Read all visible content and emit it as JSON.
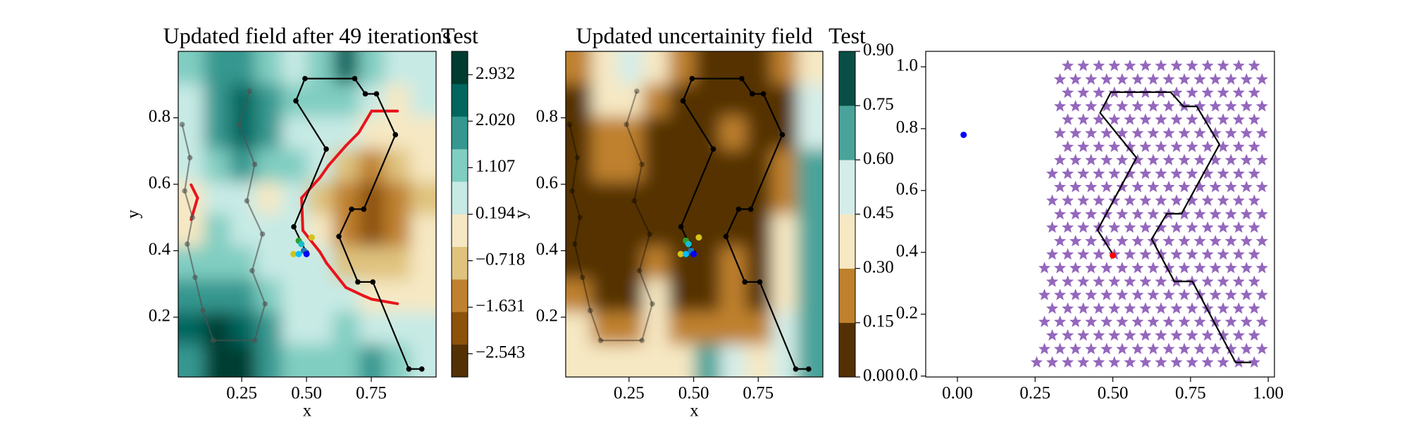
{
  "chart_data": [
    {
      "type": "contour",
      "title": "Updated field after 49 iterations",
      "colorbar_label": "Test",
      "xlabel": "x",
      "ylabel": "y",
      "xlim": [
        0.005,
        1.0
      ],
      "ylim": [
        0.02,
        1.0
      ],
      "xticks": [
        0.25,
        {
          "value": 0.5,
          "label": "0.50"
        },
        0.75
      ],
      "yticks": [
        0.2,
        0.4,
        0.6,
        0.8
      ],
      "levels": [
        -3.0,
        -2.361,
        -1.722,
        -1.083,
        -0.444,
        0.195,
        0.834,
        1.473,
        2.112,
        2.751,
        3.39
      ],
      "colors": [
        "#543005",
        "#8c510a",
        "#bf812d",
        "#dfc27d",
        "#f6e8c3",
        "#c7eae5",
        "#80cdc1",
        "#35978f",
        "#01665e",
        "#003c30"
      ],
      "cticks": [
        {
          "value": -2.543,
          "label": "−2.543"
        },
        {
          "value": -1.631,
          "label": "−1.631"
        },
        {
          "value": -0.718,
          "label": "−0.718"
        },
        0.194,
        1.107,
        {
          "value": 2.02,
          "label": "2.020"
        },
        2.932
      ],
      "z": [
        [
          0.9,
          1.5,
          1.8,
          1.2,
          0.8,
          1.4,
          2.3,
          1.3,
          0.2,
          0.3
        ],
        [
          0.8,
          2.0,
          2.6,
          1.6,
          0.9,
          1.0,
          1.2,
          0.2,
          0.1,
          0.2
        ],
        [
          0.6,
          1.9,
          2.5,
          1.5,
          0.8,
          0.7,
          0.4,
          -0.4,
          -0.2,
          0.0
        ],
        [
          0.3,
          1.2,
          1.6,
          1.2,
          0.9,
          0.3,
          -0.6,
          -1.2,
          -0.8,
          -0.3
        ],
        [
          -0.2,
          0.6,
          0.2,
          0.1,
          0.2,
          -0.5,
          -1.6,
          -2.3,
          -1.4,
          -0.5
        ],
        [
          0.1,
          0.9,
          0.6,
          0.5,
          0.2,
          -0.4,
          -1.4,
          -2.0,
          -1.3,
          -0.4
        ],
        [
          0.9,
          1.3,
          1.1,
          0.8,
          0.6,
          0.2,
          -0.6,
          -0.9,
          -0.5,
          -0.1
        ],
        [
          1.5,
          2.0,
          1.8,
          1.2,
          0.7,
          0.5,
          0.2,
          -0.1,
          -0.2,
          0.0
        ],
        [
          2.2,
          3.0,
          2.4,
          1.5,
          0.8,
          0.7,
          0.9,
          0.8,
          0.6,
          0.5
        ],
        [
          2.0,
          3.2,
          2.8,
          1.7,
          1.0,
          0.9,
          1.2,
          1.5,
          1.3,
          0.8
        ]
      ],
      "threshold": 0,
      "threshold_color": "#e8141c",
      "past_path": {
        "x": [
          0.02,
          0.05,
          0.03,
          0.06,
          0.04,
          0.07,
          0.1,
          0.14,
          0.3,
          0.34,
          0.29,
          0.33,
          0.27,
          0.3,
          0.24,
          0.28
        ],
        "y": [
          0.78,
          0.68,
          0.58,
          0.5,
          0.42,
          0.32,
          0.22,
          0.13,
          0.13,
          0.24,
          0.34,
          0.45,
          0.55,
          0.66,
          0.78,
          0.88
        ],
        "color": "#505050",
        "opacity": 0.6
      },
      "path": {
        "x": [
          0.945,
          0.895,
          0.756,
          0.698,
          0.625,
          0.674,
          0.721,
          0.843,
          0.77,
          0.727,
          0.686,
          0.494,
          0.459,
          0.576,
          0.451,
          0.5
        ],
        "y": [
          0.044,
          0.044,
          0.306,
          0.306,
          0.443,
          0.525,
          0.525,
          0.749,
          0.872,
          0.872,
          0.918,
          0.918,
          0.851,
          0.706,
          0.472,
          0.394
        ],
        "color": "#000000"
      },
      "markers": true,
      "points": {
        "x": [
          0.47,
          0.48,
          0.49,
          0.5,
          0.45,
          0.52,
          0.47
        ],
        "y": [
          0.43,
          0.42,
          0.4,
          0.39,
          0.39,
          0.44,
          0.39
        ],
        "colors": [
          "#2ca02c",
          "#17becf",
          "#1f77b4",
          "#0000ff",
          "#d4c21a",
          "#d4c21a",
          "#00bfff"
        ]
      }
    },
    {
      "type": "contour",
      "title": "Updated uncertainity field",
      "colorbar_label": "Test",
      "xlabel": "x",
      "ylabel": "y",
      "xlim": [
        0.005,
        1.0
      ],
      "ylim": [
        0.02,
        1.0
      ],
      "xticks": [
        0.25,
        {
          "value": 0.5,
          "label": "0.50"
        },
        0.75
      ],
      "yticks": [
        0.2,
        0.4,
        0.6,
        0.8
      ],
      "levels": [
        0,
        0.15,
        0.3,
        0.45,
        0.6,
        0.75,
        0.9
      ],
      "colors": [
        "#543005",
        "#bf812d",
        "#f6e8c3",
        "#d5ede8",
        "#4aa39a",
        "#0a4f45"
      ],
      "cticks": [
        {
          "value": 0,
          "label": "0.00"
        },
        0.15,
        {
          "value": 0.3,
          "label": "0.30"
        },
        0.45,
        {
          "value": 0.6,
          "label": "0.60"
        },
        0.75,
        {
          "value": 0.9,
          "label": "0.90"
        }
      ],
      "z": [
        [
          0.2,
          0.4,
          0.45,
          0.35,
          0.2,
          0.05,
          0.05,
          0.05,
          0.2,
          0.4
        ],
        [
          0.1,
          0.3,
          0.35,
          0.2,
          0.1,
          0.05,
          0.05,
          0.1,
          0.05,
          0.45
        ],
        [
          0.05,
          0.15,
          0.25,
          0.1,
          0.05,
          0.05,
          0.2,
          0.05,
          0.1,
          0.55
        ],
        [
          0.05,
          0.15,
          0.2,
          0.05,
          0.05,
          0.05,
          0.1,
          0.05,
          0.2,
          0.6
        ],
        [
          0.05,
          0.1,
          0.05,
          0.05,
          0.05,
          0.05,
          0.05,
          0.05,
          0.25,
          0.6
        ],
        [
          0.05,
          0.05,
          0.05,
          0.05,
          0.05,
          0.05,
          0.1,
          0.05,
          0.3,
          0.65
        ],
        [
          0.1,
          0.05,
          0.05,
          0.15,
          0.05,
          0.05,
          0.15,
          0.05,
          0.35,
          0.65
        ],
        [
          0.2,
          0.1,
          0.1,
          0.3,
          0.1,
          0.05,
          0.2,
          0.1,
          0.4,
          0.7
        ],
        [
          0.3,
          0.25,
          0.2,
          0.35,
          0.2,
          0.25,
          0.2,
          0.2,
          0.45,
          0.65
        ],
        [
          0.4,
          0.35,
          0.3,
          0.35,
          0.4,
          0.7,
          0.55,
          0.35,
          0.55,
          0.7
        ]
      ],
      "past_path": {
        "x": [
          0.02,
          0.05,
          0.03,
          0.06,
          0.04,
          0.07,
          0.1,
          0.14,
          0.3,
          0.34,
          0.29,
          0.33,
          0.27,
          0.3,
          0.24,
          0.28
        ],
        "y": [
          0.78,
          0.68,
          0.58,
          0.5,
          0.42,
          0.32,
          0.22,
          0.13,
          0.13,
          0.24,
          0.34,
          0.45,
          0.55,
          0.66,
          0.78,
          0.88
        ],
        "color": "#000000",
        "opacity": 0.35
      },
      "path": {
        "x": [
          0.945,
          0.895,
          0.756,
          0.698,
          0.625,
          0.674,
          0.721,
          0.843,
          0.77,
          0.727,
          0.686,
          0.494,
          0.459,
          0.576,
          0.451,
          0.5
        ],
        "y": [
          0.044,
          0.044,
          0.306,
          0.306,
          0.443,
          0.525,
          0.525,
          0.749,
          0.872,
          0.872,
          0.918,
          0.918,
          0.851,
          0.706,
          0.472,
          0.394
        ],
        "color": "#000000"
      },
      "markers": true,
      "points": {
        "x": [
          0.47,
          0.48,
          0.49,
          0.5,
          0.45,
          0.52,
          0.47
        ],
        "y": [
          0.43,
          0.42,
          0.4,
          0.39,
          0.39,
          0.44,
          0.39
        ],
        "colors": [
          "#2ca02c",
          "#17becf",
          "#1f77b4",
          "#0000ff",
          "#d4c21a",
          "#d4c21a",
          "#00bfff"
        ]
      }
    },
    {
      "type": "scatter",
      "xlim": [
        -0.102,
        1.02
      ],
      "ylim": [
        -0.003,
        1.05
      ],
      "xticks": [
        {
          "value": 0,
          "label": "0.00"
        },
        0.25,
        {
          "value": 0.5,
          "label": "0.50"
        },
        0.75,
        {
          "value": 1,
          "label": "1.00"
        }
      ],
      "yticks": [
        {
          "value": 0,
          "label": "0.0"
        },
        0.2,
        0.4,
        0.6,
        0.8,
        {
          "value": 1,
          "label": "1.0"
        }
      ],
      "star_color": "#9467bd",
      "star_rows": [
        {
          "y": 1.003,
          "x": [
            0.355,
            0.405,
            0.455,
            0.505,
            0.555,
            0.605,
            0.655,
            0.705,
            0.755,
            0.805,
            0.855,
            0.905,
            0.955
          ]
        },
        {
          "y": 0.959,
          "x": [
            0.33,
            0.38,
            0.43,
            0.48,
            0.53,
            0.58,
            0.63,
            0.68,
            0.73,
            0.78,
            0.83,
            0.88,
            0.93,
            0.98
          ]
        },
        {
          "y": 0.916,
          "x": [
            0.355,
            0.405,
            0.455,
            0.505,
            0.555,
            0.605,
            0.655,
            0.705,
            0.755,
            0.805,
            0.855,
            0.905,
            0.955
          ]
        },
        {
          "y": 0.872,
          "x": [
            0.33,
            0.38,
            0.43,
            0.48,
            0.53,
            0.58,
            0.63,
            0.68,
            0.73,
            0.78,
            0.83,
            0.88,
            0.93,
            0.98
          ]
        },
        {
          "y": 0.829,
          "x": [
            0.355,
            0.405,
            0.455,
            0.505,
            0.555,
            0.605,
            0.655,
            0.705,
            0.755,
            0.805,
            0.855,
            0.905,
            0.955
          ]
        },
        {
          "y": 0.785,
          "x": [
            0.33,
            0.38,
            0.43,
            0.48,
            0.53,
            0.58,
            0.63,
            0.68,
            0.73,
            0.78,
            0.83,
            0.88,
            0.93,
            0.98
          ]
        },
        {
          "y": 0.741,
          "x": [
            0.355,
            0.405,
            0.455,
            0.505,
            0.555,
            0.605,
            0.655,
            0.705,
            0.755,
            0.805,
            0.855,
            0.905,
            0.955
          ]
        },
        {
          "y": 0.698,
          "x": [
            0.33,
            0.38,
            0.43,
            0.48,
            0.53,
            0.58,
            0.63,
            0.68,
            0.73,
            0.78,
            0.83,
            0.88,
            0.93,
            0.98
          ]
        },
        {
          "y": 0.654,
          "x": [
            0.305,
            0.355,
            0.405,
            0.455,
            0.505,
            0.555,
            0.605,
            0.655,
            0.705,
            0.755,
            0.805,
            0.855,
            0.905,
            0.955
          ]
        },
        {
          "y": 0.611,
          "x": [
            0.33,
            0.38,
            0.43,
            0.48,
            0.53,
            0.58,
            0.63,
            0.68,
            0.73,
            0.78,
            0.83,
            0.88,
            0.93,
            0.98
          ]
        },
        {
          "y": 0.567,
          "x": [
            0.305,
            0.355,
            0.405,
            0.455,
            0.505,
            0.555,
            0.605,
            0.655,
            0.705,
            0.755,
            0.805,
            0.855,
            0.905,
            0.955
          ]
        },
        {
          "y": 0.523,
          "x": [
            0.33,
            0.38,
            0.43,
            0.48,
            0.53,
            0.58,
            0.63,
            0.68,
            0.73,
            0.78,
            0.83,
            0.88,
            0.93,
            0.98
          ]
        },
        {
          "y": 0.48,
          "x": [
            0.305,
            0.355,
            0.405,
            0.455,
            0.505,
            0.555,
            0.605,
            0.655,
            0.705,
            0.755,
            0.805,
            0.855,
            0.905,
            0.955
          ]
        },
        {
          "y": 0.436,
          "x": [
            0.33,
            0.38,
            0.43,
            0.48,
            0.53,
            0.58,
            0.63,
            0.68,
            0.73,
            0.78,
            0.83,
            0.88,
            0.93,
            0.98
          ]
        },
        {
          "y": 0.393,
          "x": [
            0.305,
            0.355,
            0.405,
            0.455,
            0.505,
            0.555,
            0.605,
            0.655,
            0.705,
            0.755,
            0.805,
            0.855,
            0.905,
            0.955
          ]
        },
        {
          "y": 0.349,
          "x": [
            0.28,
            0.33,
            0.38,
            0.43,
            0.48,
            0.53,
            0.58,
            0.63,
            0.68,
            0.73,
            0.78,
            0.83,
            0.88,
            0.93,
            0.98
          ]
        },
        {
          "y": 0.305,
          "x": [
            0.305,
            0.355,
            0.405,
            0.455,
            0.505,
            0.555,
            0.605,
            0.655,
            0.705,
            0.755,
            0.805,
            0.855,
            0.905,
            0.955
          ]
        },
        {
          "y": 0.262,
          "x": [
            0.28,
            0.33,
            0.38,
            0.43,
            0.48,
            0.53,
            0.58,
            0.63,
            0.68,
            0.73,
            0.78,
            0.83,
            0.88,
            0.93,
            0.98
          ]
        },
        {
          "y": 0.218,
          "x": [
            0.305,
            0.355,
            0.405,
            0.455,
            0.505,
            0.555,
            0.605,
            0.655,
            0.705,
            0.755,
            0.805,
            0.855,
            0.905,
            0.955
          ]
        },
        {
          "y": 0.175,
          "x": [
            0.28,
            0.33,
            0.38,
            0.43,
            0.48,
            0.53,
            0.58,
            0.63,
            0.68,
            0.73,
            0.78,
            0.83,
            0.88,
            0.93,
            0.98
          ]
        },
        {
          "y": 0.131,
          "x": [
            0.305,
            0.355,
            0.405,
            0.455,
            0.505,
            0.555,
            0.605,
            0.655,
            0.705,
            0.755,
            0.805,
            0.855,
            0.905,
            0.955
          ]
        },
        {
          "y": 0.087,
          "x": [
            0.28,
            0.33,
            0.38,
            0.43,
            0.48,
            0.53,
            0.58,
            0.63,
            0.68,
            0.73,
            0.78,
            0.83,
            0.88,
            0.93,
            0.98
          ]
        },
        {
          "y": 0.044,
          "x": [
            0.255,
            0.305,
            0.355,
            0.405,
            0.455,
            0.505,
            0.555,
            0.605,
            0.655,
            0.705,
            0.755,
            0.805,
            0.855,
            0.905,
            0.955
          ]
        }
      ],
      "path": {
        "x": [
          0.945,
          0.895,
          0.756,
          0.698,
          0.625,
          0.674,
          0.721,
          0.843,
          0.77,
          0.727,
          0.686,
          0.494,
          0.459,
          0.576,
          0.451,
          0.5
        ],
        "y": [
          0.044,
          0.044,
          0.306,
          0.306,
          0.443,
          0.525,
          0.525,
          0.749,
          0.872,
          0.872,
          0.918,
          0.918,
          0.851,
          0.706,
          0.472,
          0.394
        ],
        "color": "#000000"
      },
      "points": {
        "x": [
          0.02,
          0.5
        ],
        "y": [
          0.78,
          0.39
        ],
        "colors": [
          "#0000ff",
          "#ff0000"
        ]
      }
    }
  ]
}
